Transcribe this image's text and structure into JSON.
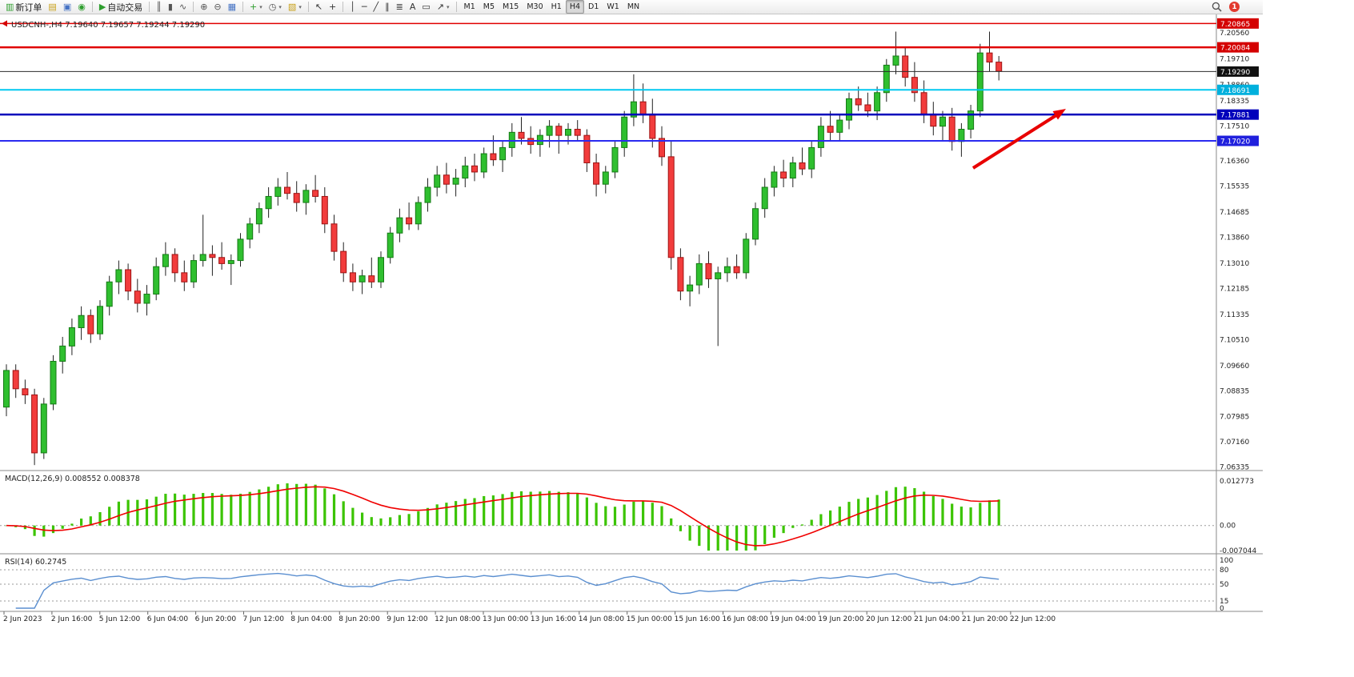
{
  "toolbar": {
    "groups": [
      {
        "items": [
          {
            "name": "new-order-button",
            "glyph": "▥",
            "color": "#2e9e2e",
            "label": "新订单"
          },
          {
            "name": "charts-menu-icon",
            "glyph": "▤",
            "color": "#c8a018"
          },
          {
            "name": "profiles-icon",
            "glyph": "▣",
            "color": "#4472c4"
          },
          {
            "name": "market-watch-icon",
            "glyph": "◉",
            "color": "#2e9e2e"
          }
        ]
      },
      {
        "items": [
          {
            "name": "auto-trading-button",
            "glyph": "▶",
            "color": "#2e9e2e",
            "label": "自动交易"
          }
        ]
      },
      {
        "items": [
          {
            "name": "bar-chart-icon",
            "glyph": "║",
            "color": "#555555"
          },
          {
            "name": "candlestick-chart-icon",
            "glyph": "▮",
            "color": "#555555"
          },
          {
            "name": "line-chart-icon",
            "glyph": "∿",
            "color": "#555555"
          }
        ]
      },
      {
        "items": [
          {
            "name": "zoom-in-icon",
            "glyph": "⊕",
            "color": "#555555"
          },
          {
            "name": "zoom-out-icon",
            "glyph": "⊖",
            "color": "#555555"
          },
          {
            "name": "tile-windows-icon",
            "glyph": "▦",
            "color": "#4472c4"
          }
        ]
      },
      {
        "items": [
          {
            "name": "indicators-icon",
            "glyph": "+",
            "color": "#2e9e2e",
            "caret": true
          },
          {
            "name": "periods-icon",
            "glyph": "◷",
            "color": "#555555",
            "caret": true
          },
          {
            "name": "templates-icon",
            "glyph": "▧",
            "color": "#c8a018",
            "caret": true
          }
        ]
      },
      {
        "items": [
          {
            "name": "cursor-icon",
            "glyph": "↖",
            "color": "#333333"
          },
          {
            "name": "crosshair-icon",
            "glyph": "+",
            "color": "#333333"
          }
        ]
      },
      {
        "items": [
          {
            "name": "vertical-line-icon",
            "glyph": "│",
            "color": "#333333"
          },
          {
            "name": "horizontal-line-icon",
            "glyph": "─",
            "color": "#333333"
          },
          {
            "name": "trendline-icon",
            "glyph": "╱",
            "color": "#333333"
          },
          {
            "name": "equidistant-channel-icon",
            "glyph": "∥",
            "color": "#333333"
          },
          {
            "name": "fibonacci-icon",
            "glyph": "≣",
            "color": "#333333"
          },
          {
            "name": "text-icon",
            "glyph": "A",
            "color": "#333333"
          },
          {
            "name": "text-label-icon",
            "glyph": "▭",
            "color": "#333333"
          },
          {
            "name": "arrows-icon",
            "glyph": "↗",
            "color": "#333333",
            "caret": true
          }
        ]
      }
    ],
    "timeframes": [
      "M1",
      "M5",
      "M15",
      "M30",
      "H1",
      "H4",
      "D1",
      "W1",
      "MN"
    ],
    "active_timeframe": "H4",
    "notification_count": "1"
  },
  "chart_header": {
    "symbol_info": "USDCNH-,H4 7.19640 7.19657 7.19244 7.19290"
  },
  "price_axis": {
    "regular_labels": [
      "7.20560",
      "7.19710",
      "7.18860",
      "7.18335",
      "7.17510",
      "7.16360",
      "7.15535",
      "7.14685",
      "7.13860",
      "7.13010",
      "7.12185",
      "7.11335",
      "7.10510",
      "7.09660",
      "7.08835",
      "7.07985",
      "7.07160",
      "7.06335"
    ]
  },
  "macd_panel": {
    "label": "MACD(12,26,9) 0.008552 0.008378",
    "axis_labels": {
      "max": "0.012773",
      "zero": "0.00",
      "min": "-0.007044"
    }
  },
  "rsi_panel": {
    "label": "RSI(14) 60.2745",
    "axis_labels": [
      "100",
      "80",
      "50",
      "15",
      "0"
    ],
    "dashed_levels": [
      80,
      50,
      15
    ]
  },
  "annotation": {
    "type": "arrow-up-right",
    "color": "#e80000"
  },
  "theme": {
    "bull": "#2fbf2f",
    "bull_border": "#157a15",
    "bear": "#f23c3c",
    "bear_border": "#9e1212",
    "wick": "#222222",
    "macd_hist": "#3bc400",
    "macd_signal": "#f00000",
    "rsi_line": "#5b8fd0",
    "axis_text": "#222222",
    "separator": "#8a8a8a",
    "dashed": "#9a9a9a"
  },
  "chart_data": {
    "type": "candlestick",
    "symbol": "USDCNH",
    "timeframe": "H4",
    "current_ohlc": {
      "open": 7.1964,
      "high": 7.19657,
      "low": 7.19244,
      "close": 7.1929
    },
    "ylim": [
      7.063,
      7.209
    ],
    "macd_range": [
      -0.007044,
      0.012773
    ],
    "macd_current": [
      0.008552,
      0.008378
    ],
    "rsi_current": 60.2745,
    "levels": [
      {
        "price": 7.20865,
        "label": "7.20865",
        "line_color": "#e00000",
        "box_color": "#d40000",
        "width": 1.5
      },
      {
        "price": 7.20084,
        "label": "7.20084",
        "line_color": "#e00000",
        "box_color": "#d40000",
        "width": 2.5
      },
      {
        "price": 7.1929,
        "label": "7.19290",
        "line_color": "#2a2a2a",
        "box_color": "#111111",
        "width": 1
      },
      {
        "price": 7.18691,
        "label": "7.18691",
        "line_color": "#00c8f0",
        "box_color": "#00b0dd",
        "width": 2
      },
      {
        "price": 7.17881,
        "label": "7.17881",
        "line_color": "#0000bb",
        "box_color": "#0000bb",
        "width": 2.5
      },
      {
        "price": 7.1702,
        "label": "7.17020",
        "line_color": "#2a2af0",
        "box_color": "#2020dd",
        "width": 2
      }
    ],
    "time_labels": [
      "2 Jun 2023",
      "2 Jun 16:00",
      "5 Jun 12:00",
      "6 Jun 04:00",
      "6 Jun 20:00",
      "7 Jun 12:00",
      "8 Jun 04:00",
      "8 Jun 20:00",
      "9 Jun 12:00",
      "12 Jun 08:00",
      "13 Jun 00:00",
      "13 Jun 16:00",
      "14 Jun 08:00",
      "15 Jun 00:00",
      "15 Jun 16:00",
      "16 Jun 08:00",
      "19 Jun 04:00",
      "19 Jun 20:00",
      "20 Jun 12:00",
      "21 Jun 04:00",
      "21 Jun 20:00",
      "22 Jun 12:00"
    ],
    "candles": [
      [
        7.083,
        7.097,
        7.08,
        7.095
      ],
      [
        7.095,
        7.097,
        7.086,
        7.089
      ],
      [
        7.089,
        7.092,
        7.084,
        7.087
      ],
      [
        7.087,
        7.089,
        7.064,
        7.068
      ],
      [
        7.068,
        7.086,
        7.066,
        7.084
      ],
      [
        7.084,
        7.1,
        7.082,
        7.098
      ],
      [
        7.098,
        7.106,
        7.094,
        7.103
      ],
      [
        7.103,
        7.112,
        7.1,
        7.109
      ],
      [
        7.109,
        7.116,
        7.105,
        7.113
      ],
      [
        7.113,
        7.115,
        7.104,
        7.107
      ],
      [
        7.107,
        7.118,
        7.105,
        7.116
      ],
      [
        7.116,
        7.126,
        7.113,
        7.124
      ],
      [
        7.124,
        7.131,
        7.12,
        7.128
      ],
      [
        7.128,
        7.13,
        7.118,
        7.121
      ],
      [
        7.121,
        7.125,
        7.114,
        7.117
      ],
      [
        7.117,
        7.123,
        7.113,
        7.12
      ],
      [
        7.12,
        7.132,
        7.118,
        7.129
      ],
      [
        7.129,
        7.137,
        7.126,
        7.133
      ],
      [
        7.133,
        7.135,
        7.124,
        7.127
      ],
      [
        7.127,
        7.131,
        7.121,
        7.124
      ],
      [
        7.124,
        7.133,
        7.122,
        7.131
      ],
      [
        7.131,
        7.146,
        7.129,
        7.133
      ],
      [
        7.133,
        7.136,
        7.126,
        7.132
      ],
      [
        7.132,
        7.137,
        7.128,
        7.13
      ],
      [
        7.13,
        7.133,
        7.123,
        7.131
      ],
      [
        7.131,
        7.14,
        7.129,
        7.138
      ],
      [
        7.138,
        7.145,
        7.135,
        7.143
      ],
      [
        7.143,
        7.15,
        7.14,
        7.148
      ],
      [
        7.148,
        7.155,
        7.145,
        7.152
      ],
      [
        7.152,
        7.158,
        7.149,
        7.155
      ],
      [
        7.155,
        7.16,
        7.151,
        7.153
      ],
      [
        7.153,
        7.157,
        7.147,
        7.15
      ],
      [
        7.15,
        7.156,
        7.146,
        7.154
      ],
      [
        7.154,
        7.159,
        7.15,
        7.152
      ],
      [
        7.152,
        7.155,
        7.14,
        7.143
      ],
      [
        7.143,
        7.146,
        7.131,
        7.134
      ],
      [
        7.134,
        7.137,
        7.124,
        7.127
      ],
      [
        7.127,
        7.13,
        7.121,
        7.124
      ],
      [
        7.124,
        7.128,
        7.12,
        7.126
      ],
      [
        7.126,
        7.132,
        7.122,
        7.124
      ],
      [
        7.124,
        7.134,
        7.122,
        7.132
      ],
      [
        7.132,
        7.142,
        7.13,
        7.14
      ],
      [
        7.14,
        7.148,
        7.137,
        7.145
      ],
      [
        7.145,
        7.15,
        7.141,
        7.143
      ],
      [
        7.143,
        7.152,
        7.141,
        7.15
      ],
      [
        7.15,
        7.158,
        7.147,
        7.155
      ],
      [
        7.155,
        7.162,
        7.152,
        7.159
      ],
      [
        7.159,
        7.163,
        7.153,
        7.156
      ],
      [
        7.156,
        7.161,
        7.152,
        7.158
      ],
      [
        7.158,
        7.165,
        7.155,
        7.162
      ],
      [
        7.162,
        7.166,
        7.157,
        7.16
      ],
      [
        7.16,
        7.168,
        7.158,
        7.166
      ],
      [
        7.166,
        7.172,
        7.162,
        7.164
      ],
      [
        7.164,
        7.17,
        7.16,
        7.168
      ],
      [
        7.168,
        7.176,
        7.165,
        7.173
      ],
      [
        7.173,
        7.178,
        7.169,
        7.171
      ],
      [
        7.171,
        7.175,
        7.166,
        7.169
      ],
      [
        7.169,
        7.174,
        7.165,
        7.172
      ],
      [
        7.172,
        7.177,
        7.168,
        7.175
      ],
      [
        7.175,
        7.176,
        7.166,
        7.172
      ],
      [
        7.172,
        7.176,
        7.169,
        7.174
      ],
      [
        7.174,
        7.177,
        7.17,
        7.172
      ],
      [
        7.172,
        7.174,
        7.16,
        7.163
      ],
      [
        7.163,
        7.166,
        7.152,
        7.156
      ],
      [
        7.156,
        7.162,
        7.153,
        7.16
      ],
      [
        7.16,
        7.17,
        7.158,
        7.168
      ],
      [
        7.168,
        7.18,
        7.165,
        7.178
      ],
      [
        7.178,
        7.192,
        7.175,
        7.183
      ],
      [
        7.183,
        7.189,
        7.176,
        7.179
      ],
      [
        7.179,
        7.184,
        7.168,
        7.171
      ],
      [
        7.171,
        7.175,
        7.162,
        7.165
      ],
      [
        7.165,
        7.17,
        7.128,
        7.132
      ],
      [
        7.132,
        7.135,
        7.118,
        7.121
      ],
      [
        7.121,
        7.126,
        7.116,
        7.123
      ],
      [
        7.123,
        7.133,
        7.12,
        7.13
      ],
      [
        7.13,
        7.134,
        7.122,
        7.125
      ],
      [
        7.125,
        7.129,
        7.103,
        7.127
      ],
      [
        7.127,
        7.132,
        7.124,
        7.129
      ],
      [
        7.129,
        7.133,
        7.125,
        7.127
      ],
      [
        7.127,
        7.14,
        7.125,
        7.138
      ],
      [
        7.138,
        7.15,
        7.136,
        7.148
      ],
      [
        7.148,
        7.158,
        7.145,
        7.155
      ],
      [
        7.155,
        7.162,
        7.152,
        7.16
      ],
      [
        7.16,
        7.164,
        7.155,
        7.158
      ],
      [
        7.158,
        7.165,
        7.155,
        7.163
      ],
      [
        7.163,
        7.168,
        7.159,
        7.161
      ],
      [
        7.161,
        7.17,
        7.158,
        7.168
      ],
      [
        7.168,
        7.178,
        7.165,
        7.175
      ],
      [
        7.175,
        7.18,
        7.17,
        7.173
      ],
      [
        7.173,
        7.179,
        7.17,
        7.177
      ],
      [
        7.177,
        7.186,
        7.174,
        7.184
      ],
      [
        7.184,
        7.188,
        7.18,
        7.182
      ],
      [
        7.182,
        7.186,
        7.178,
        7.18
      ],
      [
        7.18,
        7.188,
        7.177,
        7.186
      ],
      [
        7.186,
        7.197,
        7.183,
        7.195
      ],
      [
        7.195,
        7.206,
        7.192,
        7.198
      ],
      [
        7.198,
        7.201,
        7.188,
        7.191
      ],
      [
        7.191,
        7.196,
        7.183,
        7.186
      ],
      [
        7.186,
        7.19,
        7.176,
        7.179
      ],
      [
        7.179,
        7.183,
        7.172,
        7.175
      ],
      [
        7.175,
        7.18,
        7.17,
        7.178
      ],
      [
        7.178,
        7.181,
        7.167,
        7.17
      ],
      [
        7.17,
        7.176,
        7.165,
        7.174
      ],
      [
        7.174,
        7.182,
        7.171,
        7.18
      ],
      [
        7.18,
        7.202,
        7.178,
        7.199
      ],
      [
        7.199,
        7.206,
        7.193,
        7.196
      ],
      [
        7.196,
        7.198,
        7.19,
        7.193
      ]
    ]
  }
}
